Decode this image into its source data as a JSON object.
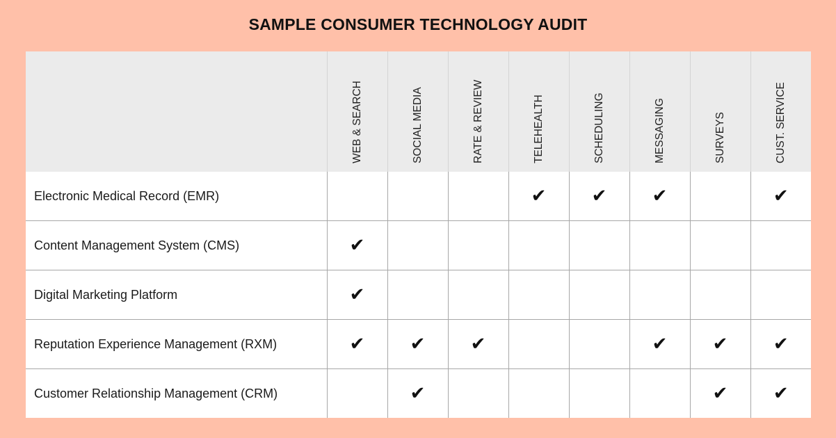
{
  "title": "SAMPLE CONSUMER TECHNOLOGY AUDIT",
  "check_symbol": "✔",
  "columns": [
    "WEB & SEARCH",
    "SOCIAL MEDIA",
    "RATE & REVIEW",
    "TELEHEALTH",
    "SCHEDULING",
    "MESSAGING",
    "SURVEYS",
    "CUST. SERVICE"
  ],
  "rows": [
    {
      "label": "Electronic Medical Record (EMR)",
      "checks": [
        false,
        false,
        false,
        true,
        true,
        true,
        false,
        true
      ]
    },
    {
      "label": "Content Management System (CMS)",
      "checks": [
        true,
        false,
        false,
        false,
        false,
        false,
        false,
        false
      ]
    },
    {
      "label": "Digital Marketing Platform",
      "checks": [
        true,
        false,
        false,
        false,
        false,
        false,
        false,
        false
      ]
    },
    {
      "label": "Reputation Experience Management (RXM)",
      "checks": [
        true,
        true,
        true,
        false,
        false,
        true,
        true,
        true
      ]
    },
    {
      "label": "Customer Relationship Management (CRM)",
      "checks": [
        false,
        true,
        false,
        false,
        false,
        false,
        true,
        true
      ]
    }
  ],
  "colors": {
    "frame": "#ffc0a9",
    "header_bg": "#ebebeb",
    "grid_line": "#a7a7a7"
  }
}
